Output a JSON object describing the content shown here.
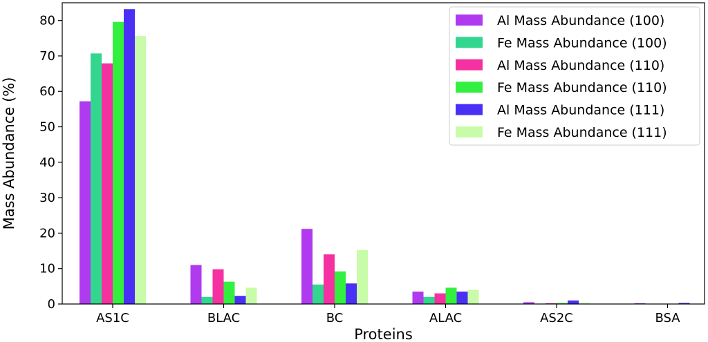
{
  "chart_data": {
    "type": "bar",
    "title": "",
    "xlabel": "Proteins",
    "ylabel": "Mass Abundance (%)",
    "ylim": [
      0,
      85
    ],
    "yticks": [
      0,
      10,
      20,
      30,
      40,
      50,
      60,
      70,
      80
    ],
    "grid": false,
    "legend_position": "top-right",
    "categories": [
      "AS1C",
      "BLAC",
      "BC",
      "ALAC",
      "AS2C",
      "BSA"
    ],
    "series": [
      {
        "name": "Al Mass Abundance (100)",
        "color": "#b03af0",
        "values": [
          57.2,
          11.0,
          21.2,
          3.5,
          0.5,
          0.2
        ]
      },
      {
        "name": "Fe Mass Abundance (100)",
        "color": "#33d68e",
        "values": [
          70.7,
          2.0,
          5.5,
          2.0,
          0.1,
          0.0
        ]
      },
      {
        "name": "Al Mass Abundance (110)",
        "color": "#f530a0",
        "values": [
          67.9,
          9.8,
          14.0,
          3.0,
          0.2,
          0.0
        ]
      },
      {
        "name": "Fe Mass Abundance (110)",
        "color": "#33f040",
        "values": [
          79.6,
          6.3,
          9.2,
          4.6,
          0.3,
          0.0
        ]
      },
      {
        "name": "Al Mass Abundance (111)",
        "color": "#4a30f5",
        "values": [
          83.2,
          2.3,
          5.8,
          3.5,
          1.0,
          0.3
        ]
      },
      {
        "name": "Fe Mass Abundance (111)",
        "color": "#c8fca8",
        "values": [
          75.6,
          4.6,
          15.2,
          4.0,
          0.3,
          0.0
        ]
      }
    ]
  }
}
